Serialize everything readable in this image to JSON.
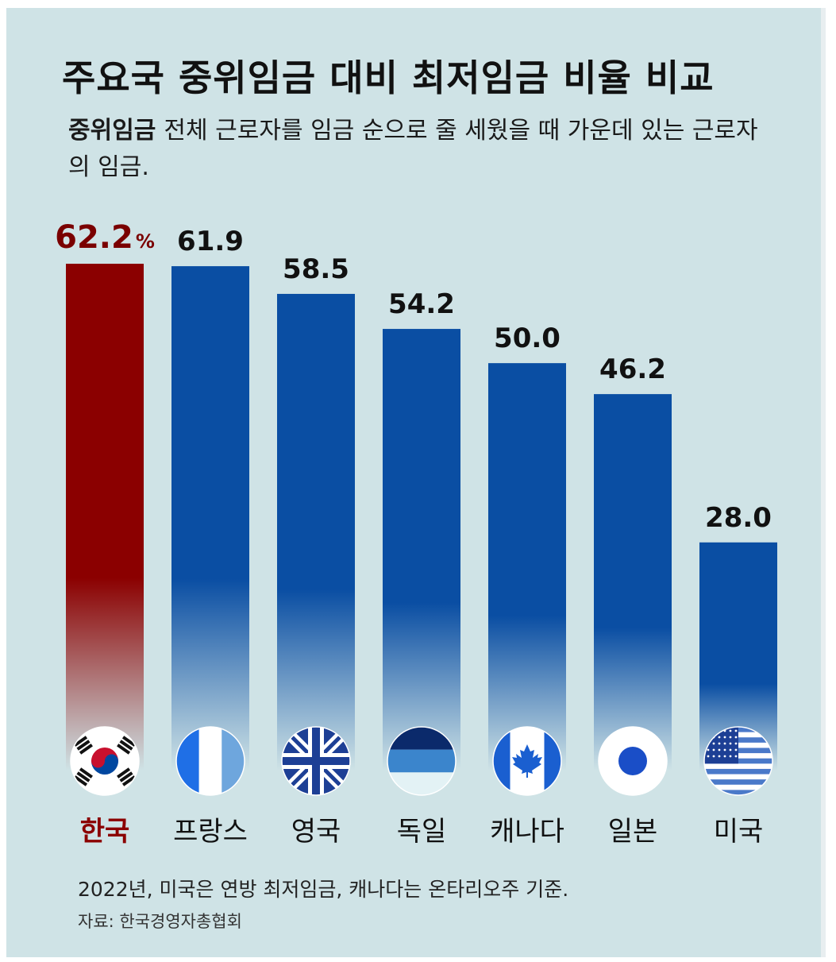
{
  "title": "주요국 중위임금 대비 최저임금 비율 비교",
  "definition": {
    "term": "중위임금",
    "text": "전체 근로자를 임금 순으로 줄 세웠을 때 가운데 있는 근로자의 임금."
  },
  "footnote": "2022년, 미국은 연방 최저임금, 캐나다는 온타리오주 기준.",
  "source": "자료: 한국경영자총협회",
  "colors": {
    "highlight_bar": "#8b0000",
    "bar": "#0a4ea3",
    "background": "#cfe3e6"
  },
  "chart_data": {
    "type": "bar",
    "unit": "%",
    "categories": [
      "한국",
      "프랑스",
      "영국",
      "독일",
      "캐나다",
      "일본",
      "미국"
    ],
    "values": [
      62.2,
      61.9,
      58.5,
      54.2,
      50.0,
      46.2,
      28.0
    ],
    "value_labels": [
      "62.2",
      "61.9",
      "58.5",
      "54.2",
      "50.0",
      "46.2",
      "28.0"
    ],
    "flags": [
      "south-korea-flag-icon",
      "france-flag-icon",
      "uk-flag-icon",
      "germany-flag-icon",
      "canada-flag-icon",
      "japan-flag-icon",
      "usa-flag-icon"
    ],
    "highlight_index": 0,
    "ylim": [
      0,
      62.2
    ],
    "grid": false
  }
}
